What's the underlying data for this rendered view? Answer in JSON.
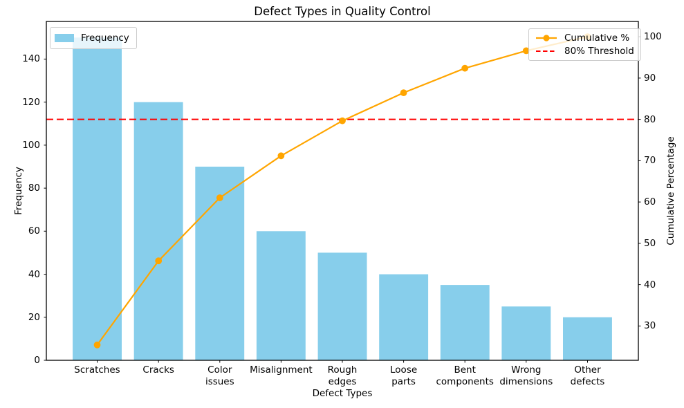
{
  "figure": {
    "title": "Defect Types in Quality Control"
  },
  "axes": {
    "xlabel": "Defect Types",
    "left_ylabel": "Frequency",
    "right_ylabel": "Cumulative Percentage"
  },
  "legends": {
    "frequency_label": "Frequency",
    "cumulative_label": "Cumulative %",
    "threshold_label": "80% Threshold"
  },
  "colors": {
    "bar": "#87CEEB",
    "line": "#FFA500",
    "threshold": "#FF0000",
    "spine": "#000000",
    "text": "#000000",
    "legend_border": "#CCCCCC"
  },
  "chart_data": {
    "type": "bar",
    "subtype": "pareto-combo",
    "title": "Defect Types in Quality Control",
    "xlabel": "Defect Types",
    "ylabel_left": "Frequency",
    "ylabel_right": "Cumulative Percentage",
    "grid": false,
    "categories": [
      "Scratches",
      "Cracks",
      "Color\nissues",
      "Misalignment",
      "Rough\nedges",
      "Loose\nparts",
      "Bent\ncomponents",
      "Wrong\ndimensions",
      "Other\ndefects"
    ],
    "series": [
      {
        "name": "Frequency",
        "type": "bar",
        "axis": "left",
        "color": "#87CEEB",
        "values": [
          150,
          120,
          90,
          60,
          50,
          40,
          35,
          25,
          20
        ]
      },
      {
        "name": "Cumulative %",
        "type": "line",
        "axis": "right",
        "color": "#FFA500",
        "marker": "circle",
        "values": [
          25.42,
          45.76,
          61.02,
          71.19,
          79.66,
          86.44,
          92.37,
          96.61,
          100.0
        ]
      }
    ],
    "threshold": {
      "value": 80,
      "label": "80% Threshold",
      "color": "#FF0000",
      "style": "dashed"
    },
    "ylim_left": [
      0,
      157.5
    ],
    "ylim_right": [
      21.7,
      103.7
    ],
    "yticks_left": [
      0,
      20,
      40,
      60,
      80,
      100,
      120,
      140
    ],
    "yticks_right": [
      30,
      40,
      50,
      60,
      70,
      80,
      90,
      100
    ],
    "legend_positions": [
      "upper left",
      "upper right"
    ]
  }
}
